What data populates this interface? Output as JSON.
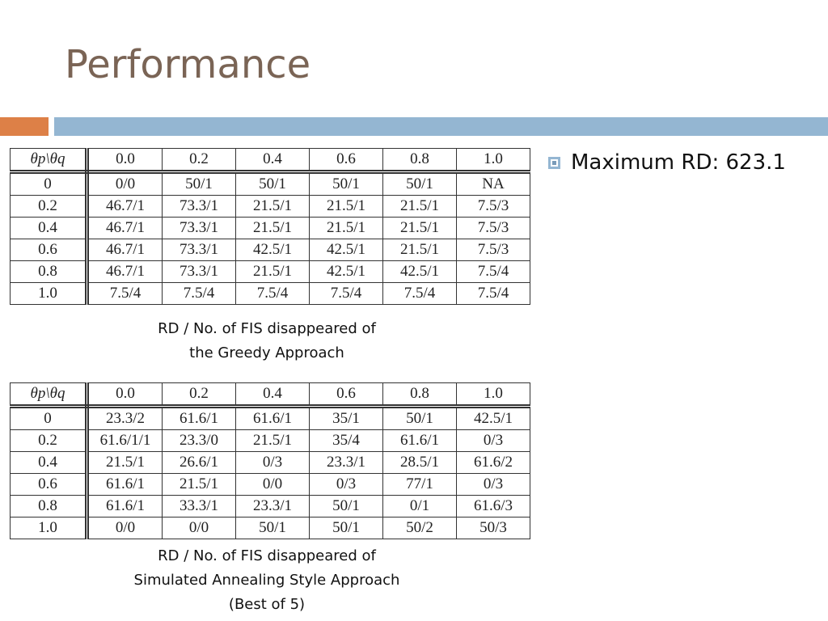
{
  "title": "Performance",
  "tables": [
    {
      "header": [
        "θp\\θq",
        "0.0",
        "0.2",
        "0.4",
        "0.6",
        "0.8",
        "1.0"
      ],
      "rows": [
        [
          "0",
          "0/0",
          "50/1",
          "50/1",
          "50/1",
          "50/1",
          "NA"
        ],
        [
          "0.2",
          "46.7/1",
          "73.3/1",
          "21.5/1",
          "21.5/1",
          "21.5/1",
          "7.5/3"
        ],
        [
          "0.4",
          "46.7/1",
          "73.3/1",
          "21.5/1",
          "21.5/1",
          "21.5/1",
          "7.5/3"
        ],
        [
          "0.6",
          "46.7/1",
          "73.3/1",
          "42.5/1",
          "42.5/1",
          "21.5/1",
          "7.5/3"
        ],
        [
          "0.8",
          "46.7/1",
          "73.3/1",
          "21.5/1",
          "42.5/1",
          "42.5/1",
          "7.5/4"
        ],
        [
          "1.0",
          "7.5/4",
          "7.5/4",
          "7.5/4",
          "7.5/4",
          "7.5/4",
          "7.5/4"
        ]
      ],
      "caption": [
        "RD / No. of FIS disappeared of",
        "the Greedy Approach"
      ]
    },
    {
      "header": [
        "θp\\θq",
        "0.0",
        "0.2",
        "0.4",
        "0.6",
        "0.8",
        "1.0"
      ],
      "rows": [
        [
          "0",
          "23.3/2",
          "61.6/1",
          "61.6/1",
          "35/1",
          "50/1",
          "42.5/1"
        ],
        [
          "0.2",
          "61.6/1/1",
          "23.3/0",
          "21.5/1",
          "35/4",
          "61.6/1",
          "0/3"
        ],
        [
          "0.4",
          "21.5/1",
          "26.6/1",
          "0/3",
          "23.3/1",
          "28.5/1",
          "61.6/2"
        ],
        [
          "0.6",
          "61.6/1",
          "21.5/1",
          "0/0",
          "0/3",
          "77/1",
          "0/3"
        ],
        [
          "0.8",
          "61.6/1",
          "33.3/1",
          "23.3/1",
          "50/1",
          "0/1",
          "61.6/3"
        ],
        [
          "1.0",
          "0/0",
          "0/0",
          "50/1",
          "50/1",
          "50/2",
          "50/3"
        ]
      ],
      "caption": [
        "RD / No. of FIS disappeared of",
        "Simulated Annealing Style Approach",
        "(Best of 5)"
      ]
    }
  ],
  "bullets": [
    "Maximum RD: 623.1"
  ]
}
